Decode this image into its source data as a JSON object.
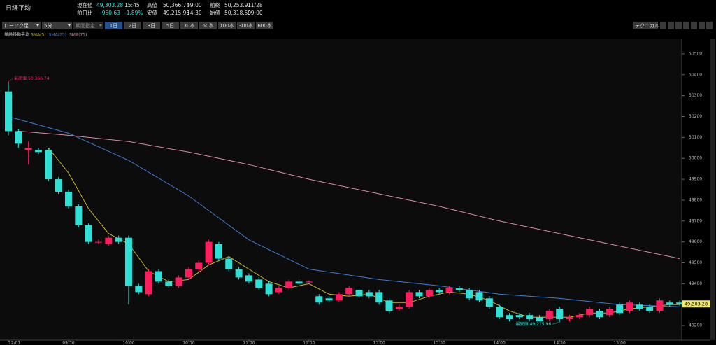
{
  "header": {
    "title": "日経平均",
    "fields": [
      {
        "label": "現在値",
        "value": "49,303.28 ↓",
        "time": "15:45"
      },
      {
        "label": "前日比",
        "value": "-950.63",
        "time": "-1.89%"
      },
      {
        "label": "高値",
        "value": "50,366.74",
        "time": "09:00"
      },
      {
        "label": "安値",
        "value": "49,215.96",
        "time": "14:30"
      },
      {
        "label": "前終",
        "value": "50,253.91",
        "time": "11/28"
      },
      {
        "label": "始値",
        "value": "50,318.59",
        "time": "09:00"
      }
    ]
  },
  "toolbar": {
    "chart_type": "ローソク足",
    "interval": "5分",
    "period": "期間指定",
    "ranges": [
      "1日",
      "2日",
      "3日",
      "5日",
      "30本",
      "60本",
      "100本",
      "300本",
      "600本"
    ],
    "technical": "テクニカル"
  },
  "chart_data": {
    "type": "candlestick",
    "legend_title": "単純移動平均",
    "up_color": "#ff1d5e",
    "down_color": "#2fe0d6",
    "categories": [
      "12/01",
      null,
      null,
      null,
      null,
      null,
      "09:30",
      null,
      null,
      null,
      null,
      null,
      "10:00",
      null,
      null,
      null,
      null,
      null,
      "10:30",
      null,
      null,
      null,
      null,
      null,
      "11:00",
      null,
      null,
      null,
      null,
      null,
      "11:30",
      null,
      null,
      null,
      null,
      null,
      null,
      "13:00",
      null,
      null,
      null,
      null,
      null,
      "13:30",
      null,
      null,
      null,
      null,
      null,
      "14:00",
      null,
      null,
      null,
      null,
      null,
      "14:30",
      null,
      null,
      null,
      null,
      null,
      "15:00",
      null,
      null,
      null,
      null,
      null,
      null
    ],
    "open": [
      50320,
      50130,
      50040,
      50040,
      50040,
      49900,
      49840,
      49770,
      49680,
      49600,
      49590,
      49620,
      49620,
      49390,
      49350,
      49460,
      49410,
      49390,
      49430,
      49470,
      49500,
      49590,
      49520,
      49470,
      49440,
      49420,
      49400,
      49360,
      49380,
      49410,
      49410,
      49340,
      49330,
      49320,
      49350,
      49370,
      49360,
      49360,
      49320,
      49280,
      49290,
      49360,
      49340,
      49370,
      49360,
      49380,
      49370,
      49360,
      49330,
      49290,
      49250,
      49250,
      49250,
      49240,
      49230,
      49280,
      49230,
      49240,
      49250,
      49270,
      49250,
      49300,
      49270,
      49300,
      49290,
      49270,
      49310,
      49310
    ],
    "high": [
      50366.74,
      50140,
      50080,
      50050,
      50050,
      49910,
      49850,
      49780,
      49690,
      49610,
      49630,
      49630,
      49630,
      49400,
      49470,
      49470,
      49420,
      49440,
      49480,
      49510,
      49610,
      49600,
      49530,
      49480,
      49450,
      49430,
      49410,
      49390,
      49420,
      49420,
      49415,
      49350,
      49340,
      49360,
      49390,
      49380,
      49370,
      49370,
      49330,
      49300,
      49370,
      49370,
      49380,
      49380,
      49390,
      49390,
      49380,
      49370,
      49340,
      49300,
      49260,
      49260,
      49260,
      49250,
      49280,
      49290,
      49250,
      49260,
      49290,
      49280,
      49290,
      49310,
      49320,
      49310,
      49300,
      49330,
      49320,
      49320
    ],
    "low": [
      50110,
      50050,
      49970,
      50020,
      49890,
      49830,
      49760,
      49670,
      49590,
      49590,
      49580,
      49590,
      49300,
      49350,
      49340,
      49400,
      49380,
      49380,
      49420,
      49460,
      49490,
      49510,
      49460,
      49420,
      49400,
      49370,
      49340,
      49350,
      49370,
      49390,
      49405,
      49300,
      49310,
      49310,
      49340,
      49330,
      49330,
      49300,
      49260,
      49270,
      49280,
      49330,
      49330,
      49350,
      49350,
      49360,
      49320,
      49310,
      49280,
      49230,
      49220,
      49230,
      49220,
      49225,
      49220,
      49215.96,
      49220,
      49230,
      49240,
      49230,
      49240,
      49250,
      49260,
      49270,
      49260,
      49260,
      49290,
      49295
    ],
    "close": [
      50130,
      50070,
      50050,
      50030,
      49900,
      49840,
      49770,
      49680,
      49600,
      49600,
      49620,
      49600,
      49390,
      49360,
      49460,
      49410,
      49390,
      49430,
      49470,
      49500,
      49600,
      49520,
      49470,
      49430,
      49410,
      49380,
      49350,
      49380,
      49410,
      49400,
      49410,
      49310,
      49320,
      49350,
      49380,
      49340,
      49340,
      49310,
      49270,
      49290,
      49360,
      49340,
      49370,
      49360,
      49380,
      49370,
      49330,
      49320,
      49290,
      49240,
      49230,
      49240,
      49230,
      49220,
      49270,
      49230,
      49240,
      49250,
      49280,
      49240,
      49280,
      49260,
      49310,
      49280,
      49270,
      49320,
      49300,
      49303.28
    ],
    "series": [
      {
        "name": "SMA(5)",
        "color": "#c9b52c",
        "x": [
          4,
          6,
          8,
          10,
          12,
          14,
          16,
          18,
          20,
          22,
          24,
          26,
          28,
          30,
          32,
          34,
          36,
          38,
          40,
          42,
          44,
          46,
          48,
          50,
          52,
          54,
          56,
          58,
          60,
          62,
          64,
          66,
          67
        ],
        "values": [
          50050,
          49930,
          49760,
          49640,
          49590,
          49460,
          49410,
          49420,
          49490,
          49530,
          49470,
          49410,
          49380,
          49400,
          49350,
          49340,
          49350,
          49310,
          49310,
          49340,
          49360,
          49350,
          49320,
          49270,
          49240,
          49240,
          49240,
          49260,
          49260,
          49280,
          49290,
          49300,
          49300
        ]
      },
      {
        "name": "SMA(25)",
        "color": "#3c7bd0",
        "x": [
          0,
          6,
          12,
          18,
          24,
          30,
          37,
          43,
          49,
          55,
          61,
          67
        ],
        "values": [
          50200,
          50120,
          49990,
          49820,
          49610,
          49470,
          49420,
          49390,
          49350,
          49330,
          49300,
          49290
        ]
      },
      {
        "name": "SMA(75)",
        "color": "#d98aa3",
        "x": [
          1,
          6,
          12,
          18,
          24,
          30,
          37,
          43,
          49,
          55,
          61,
          67
        ],
        "values": [
          50130,
          50110,
          50080,
          50030,
          49970,
          49900,
          49830,
          49770,
          49700,
          49640,
          49580,
          49520
        ]
      }
    ],
    "ylim": [
      49130,
      50570
    ],
    "yticks": [
      49200,
      49300,
      49400,
      49500,
      49600,
      49700,
      49800,
      49900,
      50000,
      50100,
      50200,
      50300,
      50400,
      50500
    ],
    "annotations": [
      "最高値:50,366.74",
      "最安値:49,215.96"
    ],
    "last_label": "49,303.28"
  }
}
